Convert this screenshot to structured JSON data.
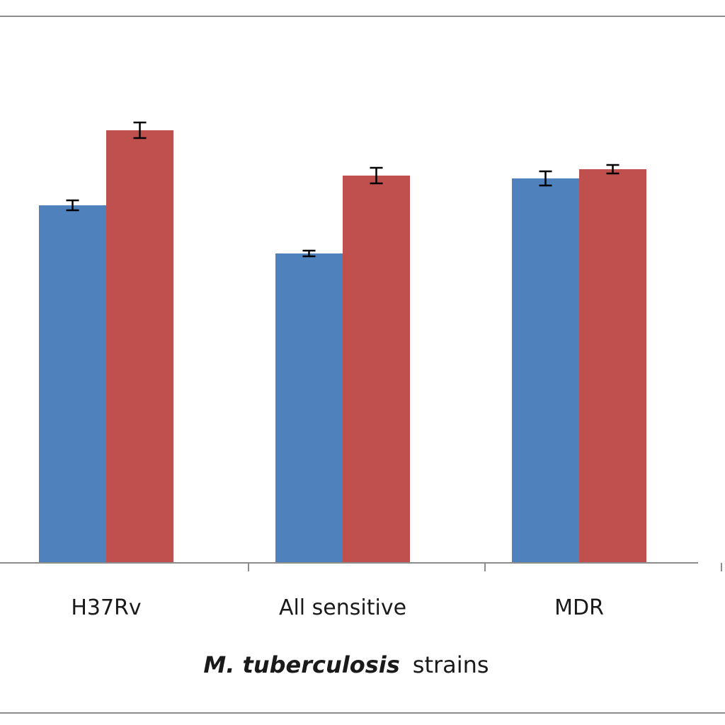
{
  "chart_data": {
    "type": "bar",
    "categories": [
      "H37Rv",
      "All sensitive",
      "MDR"
    ],
    "series": [
      {
        "color": "#4f81bd",
        "values": [
          505,
          437,
          543
        ],
        "errors": [
          7,
          4,
          10
        ]
      },
      {
        "color": "#c0504d",
        "values": [
          611,
          547,
          556
        ],
        "errors": [
          11,
          11,
          6
        ]
      }
    ],
    "xlabel": {
      "italic_part": "M. tuberculosis",
      "rest": "strains"
    },
    "ylim": [
      0,
      700
    ],
    "grid": false,
    "legend": "none"
  }
}
